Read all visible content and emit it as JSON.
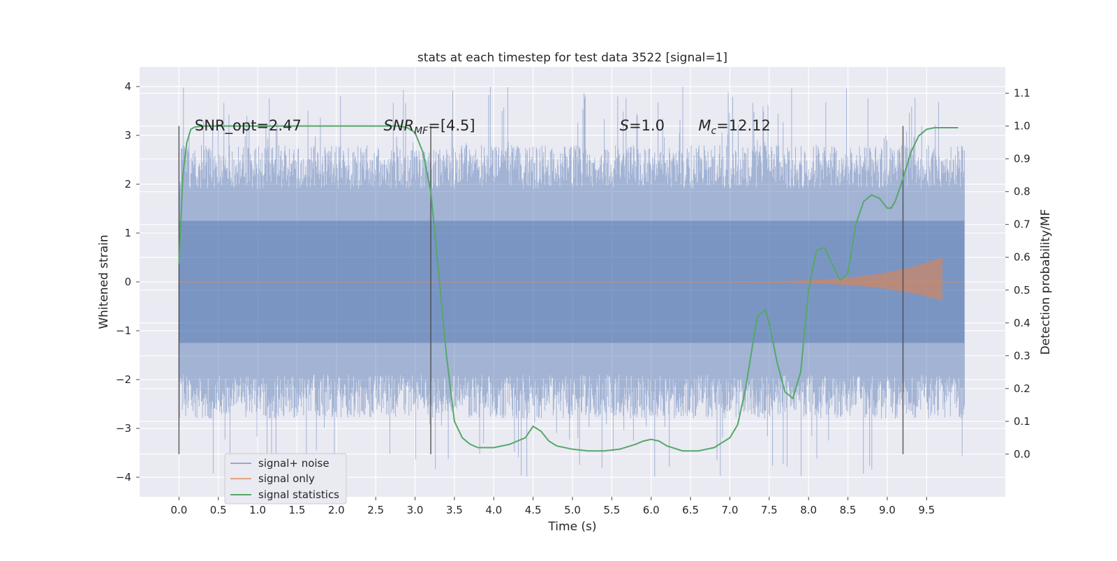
{
  "chart_data": {
    "type": "line",
    "title": "stats at each timestep for test data 3522 [signal=1]",
    "xlabel": "Time (s)",
    "ylabel_left": "Whitened strain",
    "ylabel_right": "Detection probability/MF",
    "xlim": [
      -0.5,
      10.5
    ],
    "ylim_left": [
      -4.4,
      4.4
    ],
    "ylim_right": [
      -0.13,
      1.18
    ],
    "x_ticks": [
      "0.0",
      "0.5",
      "1.0",
      "1.5",
      "2.0",
      "2.5",
      "3.0",
      "3.5",
      "4.0",
      "4.5",
      "5.0",
      "5.5",
      "6.0",
      "6.5",
      "7.0",
      "7.5",
      "8.0",
      "8.5",
      "9.0",
      "9.5"
    ],
    "y_ticks_left": [
      "4",
      "3",
      "2",
      "1",
      "0",
      "−1",
      "−2",
      "−3",
      "−4"
    ],
    "y_ticks_right": [
      "1.1",
      "1.0",
      "0.9",
      "0.8",
      "0.7",
      "0.6",
      "0.5",
      "0.4",
      "0.3",
      "0.2",
      "0.1",
      "0.0"
    ],
    "grid": true,
    "background": "#eaeaf2",
    "legend_position": "lower-left",
    "colors": {
      "noise": "#4c72b0",
      "signal": "#dd8452",
      "stats": "#55a868",
      "vlines": "#444444"
    },
    "annotations": [
      {
        "text": "SNR_opt=2.47",
        "x": 0.2,
        "y": 3.1
      },
      {
        "text": "SNR",
        "sub": "MF",
        "suffix": "=[4.5]",
        "x": 2.6,
        "y": 3.1
      },
      {
        "text": "S",
        "suffix": "=1.0",
        "x": 5.6,
        "y": 3.1
      },
      {
        "text": "M",
        "sub": "c",
        "suffix": "=12.12",
        "x": 6.6,
        "y": 3.1
      }
    ],
    "vlines": [
      0.0,
      3.2,
      9.2
    ],
    "noise_envelope": {
      "band": [
        -1.9,
        1.9
      ],
      "peak_max": 4.0,
      "peak_min": -4.0
    },
    "signal_only": {
      "start": 6.5,
      "end": 9.7,
      "peak_amplitude": 0.5
    },
    "series": [
      {
        "name": "signal+ noise"
      },
      {
        "name": "signal only"
      },
      {
        "name": "signal statistics",
        "x": [
          0.0,
          0.05,
          0.1,
          0.15,
          0.2,
          0.3,
          0.5,
          1.0,
          2.0,
          2.8,
          2.9,
          3.0,
          3.1,
          3.2,
          3.3,
          3.4,
          3.5,
          3.6,
          3.7,
          3.8,
          3.9,
          4.0,
          4.2,
          4.4,
          4.5,
          4.6,
          4.7,
          4.8,
          5.0,
          5.2,
          5.4,
          5.6,
          5.8,
          5.9,
          6.0,
          6.1,
          6.2,
          6.4,
          6.6,
          6.8,
          7.0,
          7.1,
          7.2,
          7.3,
          7.35,
          7.45,
          7.5,
          7.6,
          7.7,
          7.8,
          7.9,
          8.0,
          8.05,
          8.1,
          8.2,
          8.3,
          8.4,
          8.5,
          8.6,
          8.7,
          8.8,
          8.9,
          9.0,
          9.05,
          9.1,
          9.2,
          9.3,
          9.4,
          9.5,
          9.6,
          9.7,
          9.8,
          9.9
        ],
        "y": [
          0.58,
          0.85,
          0.95,
          0.99,
          0.997,
          1.0,
          1.0,
          1.0,
          1.0,
          1.0,
          0.995,
          0.98,
          0.92,
          0.8,
          0.55,
          0.3,
          0.1,
          0.05,
          0.03,
          0.02,
          0.02,
          0.02,
          0.03,
          0.05,
          0.085,
          0.07,
          0.04,
          0.025,
          0.015,
          0.01,
          0.01,
          0.015,
          0.03,
          0.04,
          0.045,
          0.04,
          0.025,
          0.01,
          0.01,
          0.02,
          0.05,
          0.09,
          0.2,
          0.35,
          0.42,
          0.44,
          0.4,
          0.28,
          0.19,
          0.17,
          0.25,
          0.5,
          0.56,
          0.62,
          0.63,
          0.58,
          0.53,
          0.55,
          0.7,
          0.77,
          0.79,
          0.78,
          0.75,
          0.75,
          0.77,
          0.84,
          0.92,
          0.97,
          0.99,
          0.995,
          0.995,
          0.995,
          0.995
        ]
      }
    ]
  }
}
